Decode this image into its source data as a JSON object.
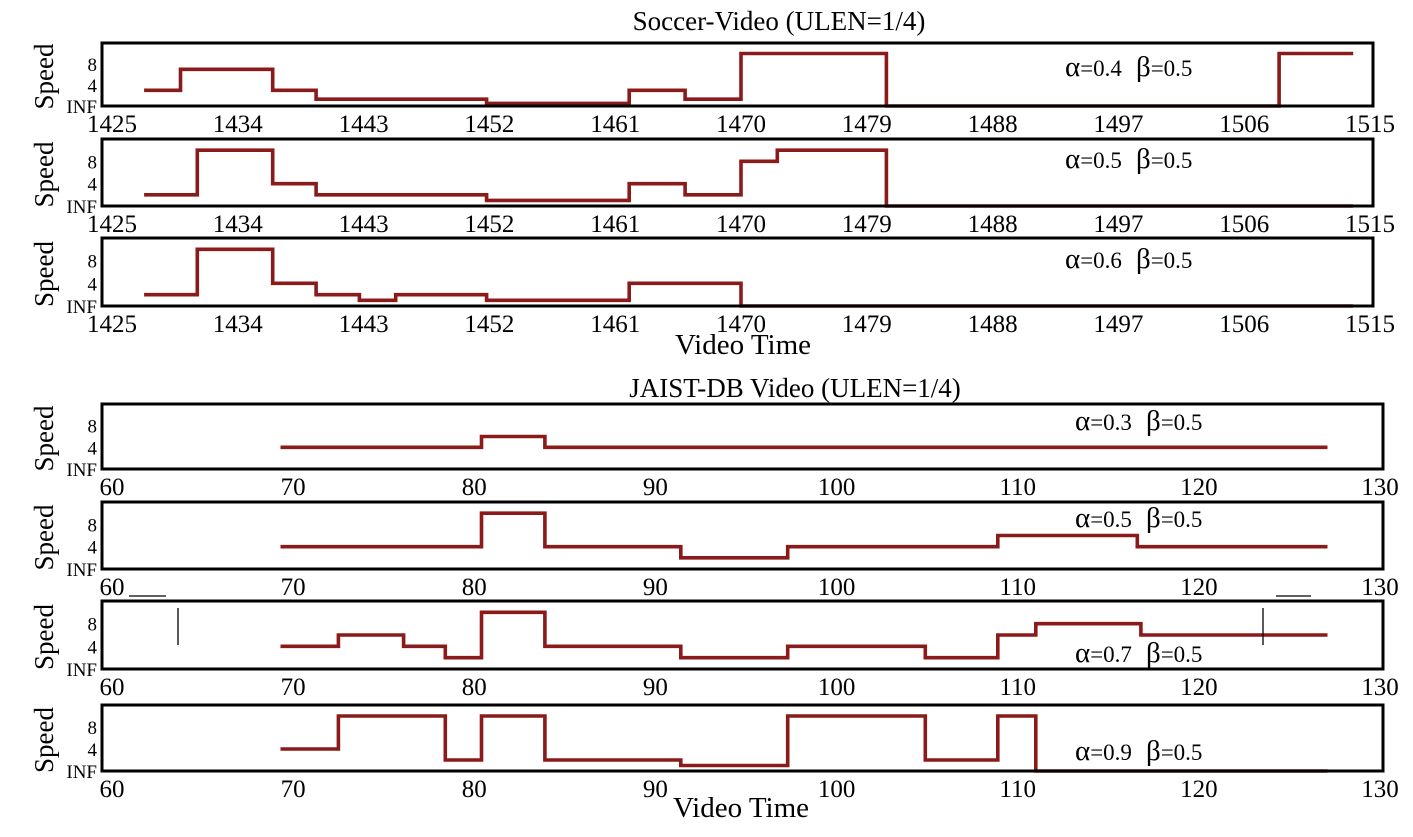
{
  "colors": {
    "line": "#8b1a1a",
    "frame": "#000000"
  },
  "figures": [
    {
      "title": "Soccer-Video (ULEN=1/4)",
      "xlabel": "Video Time",
      "xlim": [
        1425,
        1515
      ],
      "xticks": [
        "1425",
        "1434",
        "1443",
        "1452",
        "1461",
        "1470",
        "1479",
        "1488",
        "1497",
        "1506",
        "1515"
      ]
    },
    {
      "title": "JAIST-DB Video (ULEN=1/4)",
      "xlabel": "Video Time",
      "xlim": [
        60,
        130
      ],
      "xticks": [
        "60",
        "70",
        "80",
        "90",
        "100",
        "110",
        "120",
        "130"
      ]
    }
  ],
  "panel_text": {
    "ylabel": "Speed",
    "ytick_labels": [
      "8",
      "4",
      "INF"
    ],
    "alpha_symbol": "α",
    "beta_symbol": "β",
    "beta_value": "=0.5"
  },
  "chart_data": [
    {
      "type": "line",
      "step": true,
      "figure": 0,
      "alpha_value": "=0.4",
      "xlim": [
        1425,
        1515
      ],
      "ylim": [
        0,
        12
      ],
      "x": [
        1427.3,
        1429.9,
        1429.9,
        1436.5,
        1436.5,
        1439.6,
        1439.6,
        1451.8,
        1451.8,
        1462.0,
        1462.0,
        1466.0,
        1466.0,
        1470.0,
        1470.0,
        1480.4,
        1480.4,
        1508.5,
        1508.5,
        1513.8
      ],
      "y": [
        3,
        3,
        7,
        7,
        3,
        3,
        1.3,
        1.3,
        0.5,
        0.5,
        3,
        3,
        1.3,
        1.3,
        10,
        10,
        0,
        0,
        10,
        10
      ]
    },
    {
      "type": "line",
      "step": true,
      "figure": 0,
      "alpha_value": "=0.5",
      "xlim": [
        1425,
        1515
      ],
      "ylim": [
        0,
        12
      ],
      "x": [
        1427.3,
        1431.1,
        1431.1,
        1436.5,
        1436.5,
        1439.6,
        1439.6,
        1451.8,
        1451.8,
        1462.0,
        1462.0,
        1466.0,
        1466.0,
        1470.0,
        1470.0,
        1472.6,
        1472.6,
        1480.4,
        1480.4,
        1513.8
      ],
      "y": [
        2,
        2,
        10,
        10,
        4,
        4,
        2,
        2,
        1,
        1,
        4,
        4,
        2,
        2,
        8,
        8,
        10,
        10,
        0,
        0
      ]
    },
    {
      "type": "line",
      "step": true,
      "figure": 0,
      "alpha_value": "=0.6",
      "xlim": [
        1425,
        1515
      ],
      "ylim": [
        0,
        12
      ],
      "x": [
        1427.3,
        1431.1,
        1431.1,
        1436.5,
        1436.5,
        1439.6,
        1439.6,
        1442.7,
        1442.7,
        1445.3,
        1445.3,
        1451.8,
        1451.8,
        1462.0,
        1462.0,
        1470.0,
        1470.0,
        1513.8
      ],
      "y": [
        2,
        2,
        10,
        10,
        4,
        4,
        2,
        2,
        1,
        1,
        2,
        2,
        1,
        1,
        4,
        4,
        0,
        0
      ]
    },
    {
      "type": "line",
      "step": true,
      "figure": 1,
      "alpha_value": "=0.3",
      "xlim": [
        60,
        130
      ],
      "ylim": [
        0,
        12
      ],
      "x": [
        69.3,
        80.4,
        80.4,
        83.9,
        83.9,
        127.1
      ],
      "y": [
        4,
        4,
        6,
        6,
        4,
        4
      ]
    },
    {
      "type": "line",
      "step": true,
      "figure": 1,
      "alpha_value": "=0.5",
      "xlim": [
        60,
        130
      ],
      "ylim": [
        0,
        12
      ],
      "x": [
        69.3,
        80.4,
        80.4,
        83.9,
        83.9,
        91.4,
        91.4,
        97.3,
        97.3,
        108.9,
        108.9,
        116.6,
        116.6,
        127.1
      ],
      "y": [
        4,
        4,
        10,
        10,
        4,
        4,
        2,
        2,
        4,
        4,
        6,
        6,
        4,
        4
      ]
    },
    {
      "type": "line",
      "step": true,
      "figure": 1,
      "alpha_value": "=0.7",
      "xlim": [
        60,
        130
      ],
      "ylim": [
        0,
        12
      ],
      "x": [
        69.3,
        72.5,
        72.5,
        76.1,
        76.1,
        78.4,
        78.4,
        80.4,
        80.4,
        83.9,
        83.9,
        91.4,
        91.4,
        97.3,
        97.3,
        104.9,
        104.9,
        108.9,
        108.9,
        111.0,
        111.0,
        116.8,
        116.8,
        127.1
      ],
      "y": [
        4,
        4,
        6,
        6,
        4,
        4,
        2,
        2,
        10,
        10,
        4,
        4,
        2,
        2,
        4,
        4,
        2,
        2,
        6,
        6,
        8,
        8,
        6,
        6
      ]
    },
    {
      "type": "line",
      "step": true,
      "figure": 1,
      "alpha_value": "=0.9",
      "xlim": [
        60,
        130
      ],
      "ylim": [
        0,
        12
      ],
      "x": [
        69.3,
        72.5,
        72.5,
        78.4,
        78.4,
        80.4,
        80.4,
        83.9,
        83.9,
        91.4,
        91.4,
        97.3,
        97.3,
        104.9,
        104.9,
        108.9,
        108.9,
        111.0,
        111.0,
        127.1
      ],
      "y": [
        4,
        4,
        10,
        10,
        2,
        2,
        10,
        10,
        2,
        2,
        1,
        1,
        10,
        10,
        2,
        2,
        10,
        10,
        0,
        0
      ]
    }
  ]
}
